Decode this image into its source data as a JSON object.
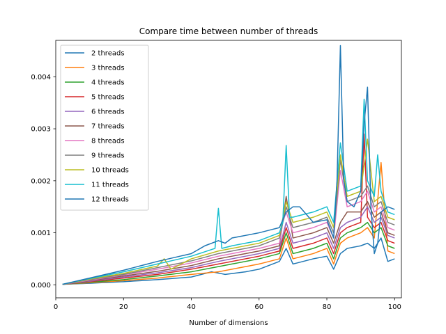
{
  "chart_data": {
    "type": "line",
    "title": "Compare time between number of threads",
    "xlabel": "Number of dimensions",
    "ylabel": "",
    "xlim": [
      0,
      102
    ],
    "ylim": [
      -0.00025,
      0.0047
    ],
    "x_ticks": [
      0,
      20,
      40,
      60,
      80,
      100
    ],
    "y_ticks": [
      0.0,
      0.001,
      0.002,
      0.003,
      0.004
    ],
    "y_tick_labels": [
      "0.000",
      "0.001",
      "0.002",
      "0.003",
      "0.004"
    ],
    "grid": false,
    "legend_position": "upper-left",
    "x_start": 2,
    "x_end": 100,
    "series": [
      {
        "name": "2 threads",
        "color": "#1f77b4",
        "keypoints": [
          [
            2,
            1e-05
          ],
          [
            10,
            3e-05
          ],
          [
            20,
            6e-05
          ],
          [
            30,
            0.0001
          ],
          [
            40,
            0.00015
          ],
          [
            46,
            0.00025
          ],
          [
            50,
            0.0002
          ],
          [
            56,
            0.00025
          ],
          [
            60,
            0.0003
          ],
          [
            66,
            0.00045
          ],
          [
            68,
            0.0007
          ],
          [
            70,
            0.0004
          ],
          [
            76,
            0.0005
          ],
          [
            80,
            0.00055
          ],
          [
            82,
            0.0003
          ],
          [
            84,
            0.0006
          ],
          [
            86,
            0.0007
          ],
          [
            90,
            0.00075
          ],
          [
            92,
            0.0008
          ],
          [
            94,
            0.0007
          ],
          [
            96,
            0.0009
          ],
          [
            98,
            0.00045
          ],
          [
            100,
            0.0005
          ]
        ]
      },
      {
        "name": "3 threads",
        "color": "#ff7f0e",
        "keypoints": [
          [
            2,
            1e-05
          ],
          [
            10,
            4e-05
          ],
          [
            20,
            8e-05
          ],
          [
            30,
            0.00013
          ],
          [
            40,
            0.0002
          ],
          [
            48,
            0.00025
          ],
          [
            52,
            0.0003
          ],
          [
            56,
            0.00035
          ],
          [
            60,
            0.0004
          ],
          [
            66,
            0.0005
          ],
          [
            68,
            0.0009
          ],
          [
            70,
            0.0005
          ],
          [
            76,
            0.0006
          ],
          [
            80,
            0.0007
          ],
          [
            82,
            0.0004
          ],
          [
            84,
            0.0008
          ],
          [
            86,
            0.0009
          ],
          [
            90,
            0.001
          ],
          [
            92,
            0.0011
          ],
          [
            94,
            0.0009
          ],
          [
            96,
            0.00235
          ],
          [
            98,
            0.00065
          ],
          [
            100,
            0.0006
          ]
        ]
      },
      {
        "name": "4 threads",
        "color": "#2ca02c",
        "keypoints": [
          [
            2,
            1e-05
          ],
          [
            10,
            5e-05
          ],
          [
            20,
            0.0001
          ],
          [
            30,
            0.00017
          ],
          [
            40,
            0.00025
          ],
          [
            48,
            0.00035
          ],
          [
            52,
            0.0004
          ],
          [
            56,
            0.00045
          ],
          [
            60,
            0.0005
          ],
          [
            66,
            0.0006
          ],
          [
            68,
            0.001
          ],
          [
            70,
            0.0006
          ],
          [
            76,
            0.0007
          ],
          [
            80,
            0.0008
          ],
          [
            82,
            0.0005
          ],
          [
            84,
            0.0009
          ],
          [
            86,
            0.001
          ],
          [
            90,
            0.0011
          ],
          [
            92,
            0.0012
          ],
          [
            94,
            0.001
          ],
          [
            96,
            0.0011
          ],
          [
            98,
            0.00075
          ],
          [
            100,
            0.0007
          ]
        ]
      },
      {
        "name": "5 threads",
        "color": "#d62728",
        "keypoints": [
          [
            2,
            1e-05
          ],
          [
            10,
            6e-05
          ],
          [
            20,
            0.00013
          ],
          [
            30,
            0.0002
          ],
          [
            40,
            0.0003
          ],
          [
            48,
            0.0004
          ],
          [
            52,
            0.00045
          ],
          [
            56,
            0.0005
          ],
          [
            60,
            0.00055
          ],
          [
            66,
            0.00065
          ],
          [
            68,
            0.0011
          ],
          [
            70,
            0.0007
          ],
          [
            76,
            0.0008
          ],
          [
            80,
            0.0009
          ],
          [
            82,
            0.0006
          ],
          [
            84,
            0.001
          ],
          [
            86,
            0.0011
          ],
          [
            90,
            0.0012
          ],
          [
            91,
            0.0029
          ],
          [
            92,
            0.0013
          ],
          [
            94,
            0.0011
          ],
          [
            96,
            0.0012
          ],
          [
            98,
            0.00085
          ],
          [
            100,
            0.0008
          ]
        ]
      },
      {
        "name": "6 threads",
        "color": "#9467bd",
        "keypoints": [
          [
            2,
            1e-05
          ],
          [
            10,
            7e-05
          ],
          [
            20,
            0.00015
          ],
          [
            30,
            0.00023
          ],
          [
            40,
            0.00033
          ],
          [
            48,
            0.00045
          ],
          [
            52,
            0.0005
          ],
          [
            56,
            0.00055
          ],
          [
            60,
            0.0006
          ],
          [
            66,
            0.0007
          ],
          [
            68,
            0.0012
          ],
          [
            70,
            0.0008
          ],
          [
            76,
            0.0009
          ],
          [
            80,
            0.001
          ],
          [
            82,
            0.0007
          ],
          [
            84,
            0.0011
          ],
          [
            86,
            0.0012
          ],
          [
            90,
            0.0013
          ],
          [
            92,
            0.0015
          ],
          [
            94,
            0.0012
          ],
          [
            96,
            0.0013
          ],
          [
            98,
            0.00095
          ],
          [
            100,
            0.0009
          ]
        ]
      },
      {
        "name": "7 threads",
        "color": "#8c564b",
        "keypoints": [
          [
            2,
            1e-05
          ],
          [
            10,
            8e-05
          ],
          [
            20,
            0.00017
          ],
          [
            30,
            0.00026
          ],
          [
            40,
            0.00037
          ],
          [
            48,
            0.0005
          ],
          [
            52,
            0.00055
          ],
          [
            56,
            0.0006
          ],
          [
            60,
            0.00065
          ],
          [
            66,
            0.00075
          ],
          [
            68,
            0.0017
          ],
          [
            70,
            0.0009
          ],
          [
            76,
            0.001
          ],
          [
            80,
            0.0011
          ],
          [
            82,
            0.0008
          ],
          [
            84,
            0.0012
          ],
          [
            86,
            0.0014
          ],
          [
            90,
            0.0014
          ],
          [
            92,
            0.0016
          ],
          [
            94,
            0.0013
          ],
          [
            96,
            0.0014
          ],
          [
            98,
            0.001
          ],
          [
            100,
            0.00095
          ]
        ]
      },
      {
        "name": "8 threads",
        "color": "#e377c2",
        "keypoints": [
          [
            2,
            1e-05
          ],
          [
            10,
            9e-05
          ],
          [
            20,
            0.00019
          ],
          [
            30,
            0.0003
          ],
          [
            40,
            0.00042
          ],
          [
            48,
            0.00055
          ],
          [
            52,
            0.0006
          ],
          [
            56,
            0.00065
          ],
          [
            60,
            0.0007
          ],
          [
            66,
            0.0008
          ],
          [
            67,
            0.0012
          ],
          [
            68,
            0.0014
          ],
          [
            70,
            0.001
          ],
          [
            76,
            0.0011
          ],
          [
            80,
            0.0012
          ],
          [
            82,
            0.0009
          ],
          [
            84,
            0.0022
          ],
          [
            86,
            0.0015
          ],
          [
            90,
            0.0016
          ],
          [
            92,
            0.0018
          ],
          [
            94,
            0.0014
          ],
          [
            96,
            0.0015
          ],
          [
            98,
            0.0011
          ],
          [
            100,
            0.00105
          ]
        ]
      },
      {
        "name": "9 threads",
        "color": "#7f7f7f",
        "keypoints": [
          [
            2,
            1e-05
          ],
          [
            10,
            0.0001
          ],
          [
            20,
            0.0002
          ],
          [
            30,
            0.00033
          ],
          [
            40,
            0.00046
          ],
          [
            48,
            0.0006
          ],
          [
            52,
            0.00065
          ],
          [
            56,
            0.0007
          ],
          [
            60,
            0.00075
          ],
          [
            66,
            0.0009
          ],
          [
            68,
            0.0015
          ],
          [
            70,
            0.0011
          ],
          [
            76,
            0.0012
          ],
          [
            80,
            0.0013
          ],
          [
            82,
            0.001
          ],
          [
            84,
            0.0024
          ],
          [
            86,
            0.0016
          ],
          [
            90,
            0.0017
          ],
          [
            92,
            0.0019
          ],
          [
            94,
            0.0015
          ],
          [
            96,
            0.0016
          ],
          [
            98,
            0.0012
          ],
          [
            100,
            0.00115
          ]
        ]
      },
      {
        "name": "10 threads",
        "color": "#bcbd22",
        "keypoints": [
          [
            2,
            1e-05
          ],
          [
            10,
            0.00011
          ],
          [
            20,
            0.00022
          ],
          [
            30,
            0.00036
          ],
          [
            32,
            0.0005
          ],
          [
            34,
            0.0003
          ],
          [
            40,
            0.0005
          ],
          [
            48,
            0.00065
          ],
          [
            52,
            0.0007
          ],
          [
            56,
            0.00075
          ],
          [
            60,
            0.0008
          ],
          [
            66,
            0.00095
          ],
          [
            68,
            0.0016
          ],
          [
            70,
            0.0012
          ],
          [
            76,
            0.0013
          ],
          [
            80,
            0.0014
          ],
          [
            82,
            0.0011
          ],
          [
            84,
            0.0025
          ],
          [
            86,
            0.0017
          ],
          [
            90,
            0.0018
          ],
          [
            92,
            0.0028
          ],
          [
            94,
            0.0016
          ],
          [
            96,
            0.0017
          ],
          [
            98,
            0.0013
          ],
          [
            100,
            0.00125
          ]
        ]
      },
      {
        "name": "11 threads",
        "color": "#17becf",
        "keypoints": [
          [
            2,
            1e-05
          ],
          [
            10,
            0.00012
          ],
          [
            20,
            0.00025
          ],
          [
            30,
            0.0004
          ],
          [
            40,
            0.00055
          ],
          [
            47,
            0.0007
          ],
          [
            48,
            0.00147
          ],
          [
            49,
            0.0007
          ],
          [
            52,
            0.00075
          ],
          [
            56,
            0.0008
          ],
          [
            60,
            0.00085
          ],
          [
            66,
            0.001
          ],
          [
            67,
            0.0012
          ],
          [
            68,
            0.00268
          ],
          [
            69,
            0.0013
          ],
          [
            70,
            0.0013
          ],
          [
            76,
            0.0014
          ],
          [
            80,
            0.0015
          ],
          [
            82,
            0.0012
          ],
          [
            84,
            0.00273
          ],
          [
            86,
            0.0018
          ],
          [
            90,
            0.0019
          ],
          [
            91,
            0.00357
          ],
          [
            92,
            0.002
          ],
          [
            94,
            0.0017
          ],
          [
            95,
            0.0025
          ],
          [
            96,
            0.0018
          ],
          [
            98,
            0.0014
          ],
          [
            100,
            0.00135
          ]
        ]
      },
      {
        "name": "12 threads",
        "color": "#1f77b4",
        "keypoints": [
          [
            2,
            1e-05
          ],
          [
            10,
            0.00013
          ],
          [
            20,
            0.00028
          ],
          [
            30,
            0.00045
          ],
          [
            40,
            0.0006
          ],
          [
            44,
            0.00075
          ],
          [
            48,
            0.00085
          ],
          [
            50,
            0.0008
          ],
          [
            52,
            0.0009
          ],
          [
            56,
            0.00095
          ],
          [
            60,
            0.001
          ],
          [
            66,
            0.0011
          ],
          [
            68,
            0.0014
          ],
          [
            70,
            0.0015
          ],
          [
            72,
            0.0015
          ],
          [
            76,
            0.0012
          ],
          [
            80,
            0.00125
          ],
          [
            82,
            0.0009
          ],
          [
            83,
            0.002
          ],
          [
            84,
            0.0046
          ],
          [
            85,
            0.002
          ],
          [
            86,
            0.0016
          ],
          [
            88,
            0.0015
          ],
          [
            90,
            0.0018
          ],
          [
            91,
            0.0031
          ],
          [
            92,
            0.0038
          ],
          [
            93,
            0.0015
          ],
          [
            94,
            0.0006
          ],
          [
            95,
            0.0008
          ],
          [
            96,
            0.0014
          ],
          [
            98,
            0.0015
          ],
          [
            100,
            0.00145
          ]
        ]
      }
    ]
  }
}
